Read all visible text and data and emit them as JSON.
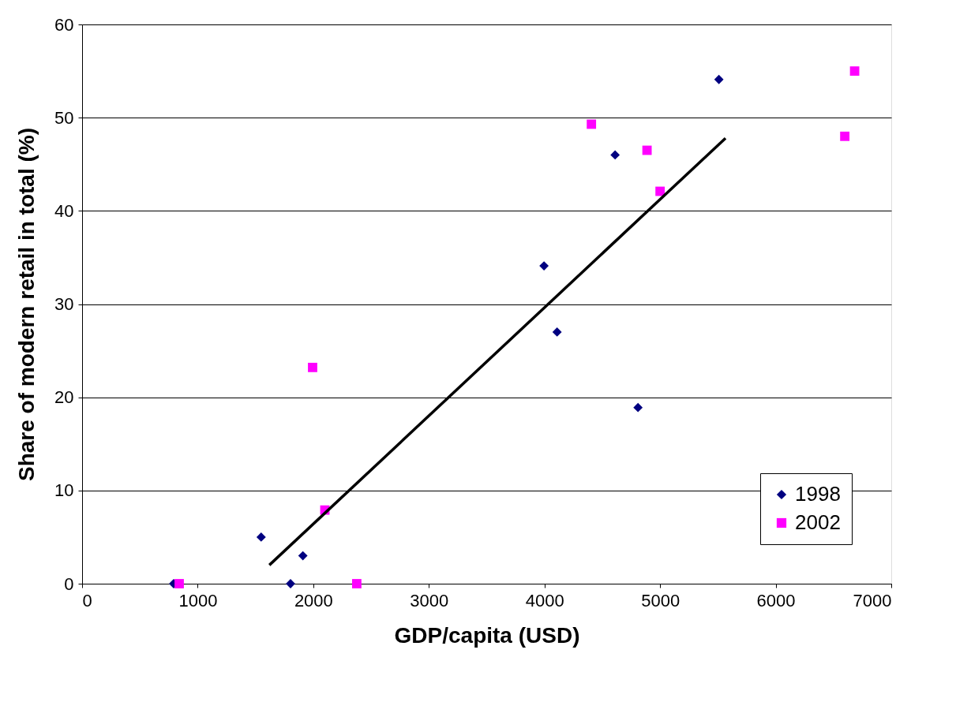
{
  "chart_data": {
    "type": "scatter",
    "xlabel": "GDP/capita (USD)",
    "ylabel": "Share of modern retail in total (%)",
    "xlim": [
      0,
      7000
    ],
    "xticks": [
      0,
      1000,
      2000,
      3000,
      4000,
      5000,
      6000,
      7000
    ],
    "ylim": [
      0,
      60
    ],
    "yticks": [
      0,
      10,
      20,
      30,
      40,
      50,
      60
    ],
    "grid": "y",
    "legend": "bottom right",
    "series": [
      {
        "name": "1998",
        "color": "#000080",
        "marker": "diamond",
        "x": [
          792,
          1549,
          1803,
          1910,
          3996,
          4109,
          4611,
          4809,
          5509
        ],
        "values": [
          0,
          5.0,
          0,
          3.0,
          34.1,
          27.0,
          46.0,
          18.9,
          54.1
        ]
      },
      {
        "name": "2002",
        "color": "#ff00ff",
        "marker": "square",
        "x": [
          840,
          1994,
          2100,
          2376,
          4406,
          4887,
          5000,
          6598,
          6683
        ],
        "values": [
          0,
          23.2,
          7.9,
          0,
          49.3,
          46.5,
          42.1,
          48.0,
          55.0
        ]
      },
      {
        "type": "line",
        "color": "#000000",
        "x": [
          1620,
          5566
        ],
        "values": [
          2.0,
          47.8
        ]
      }
    ]
  }
}
